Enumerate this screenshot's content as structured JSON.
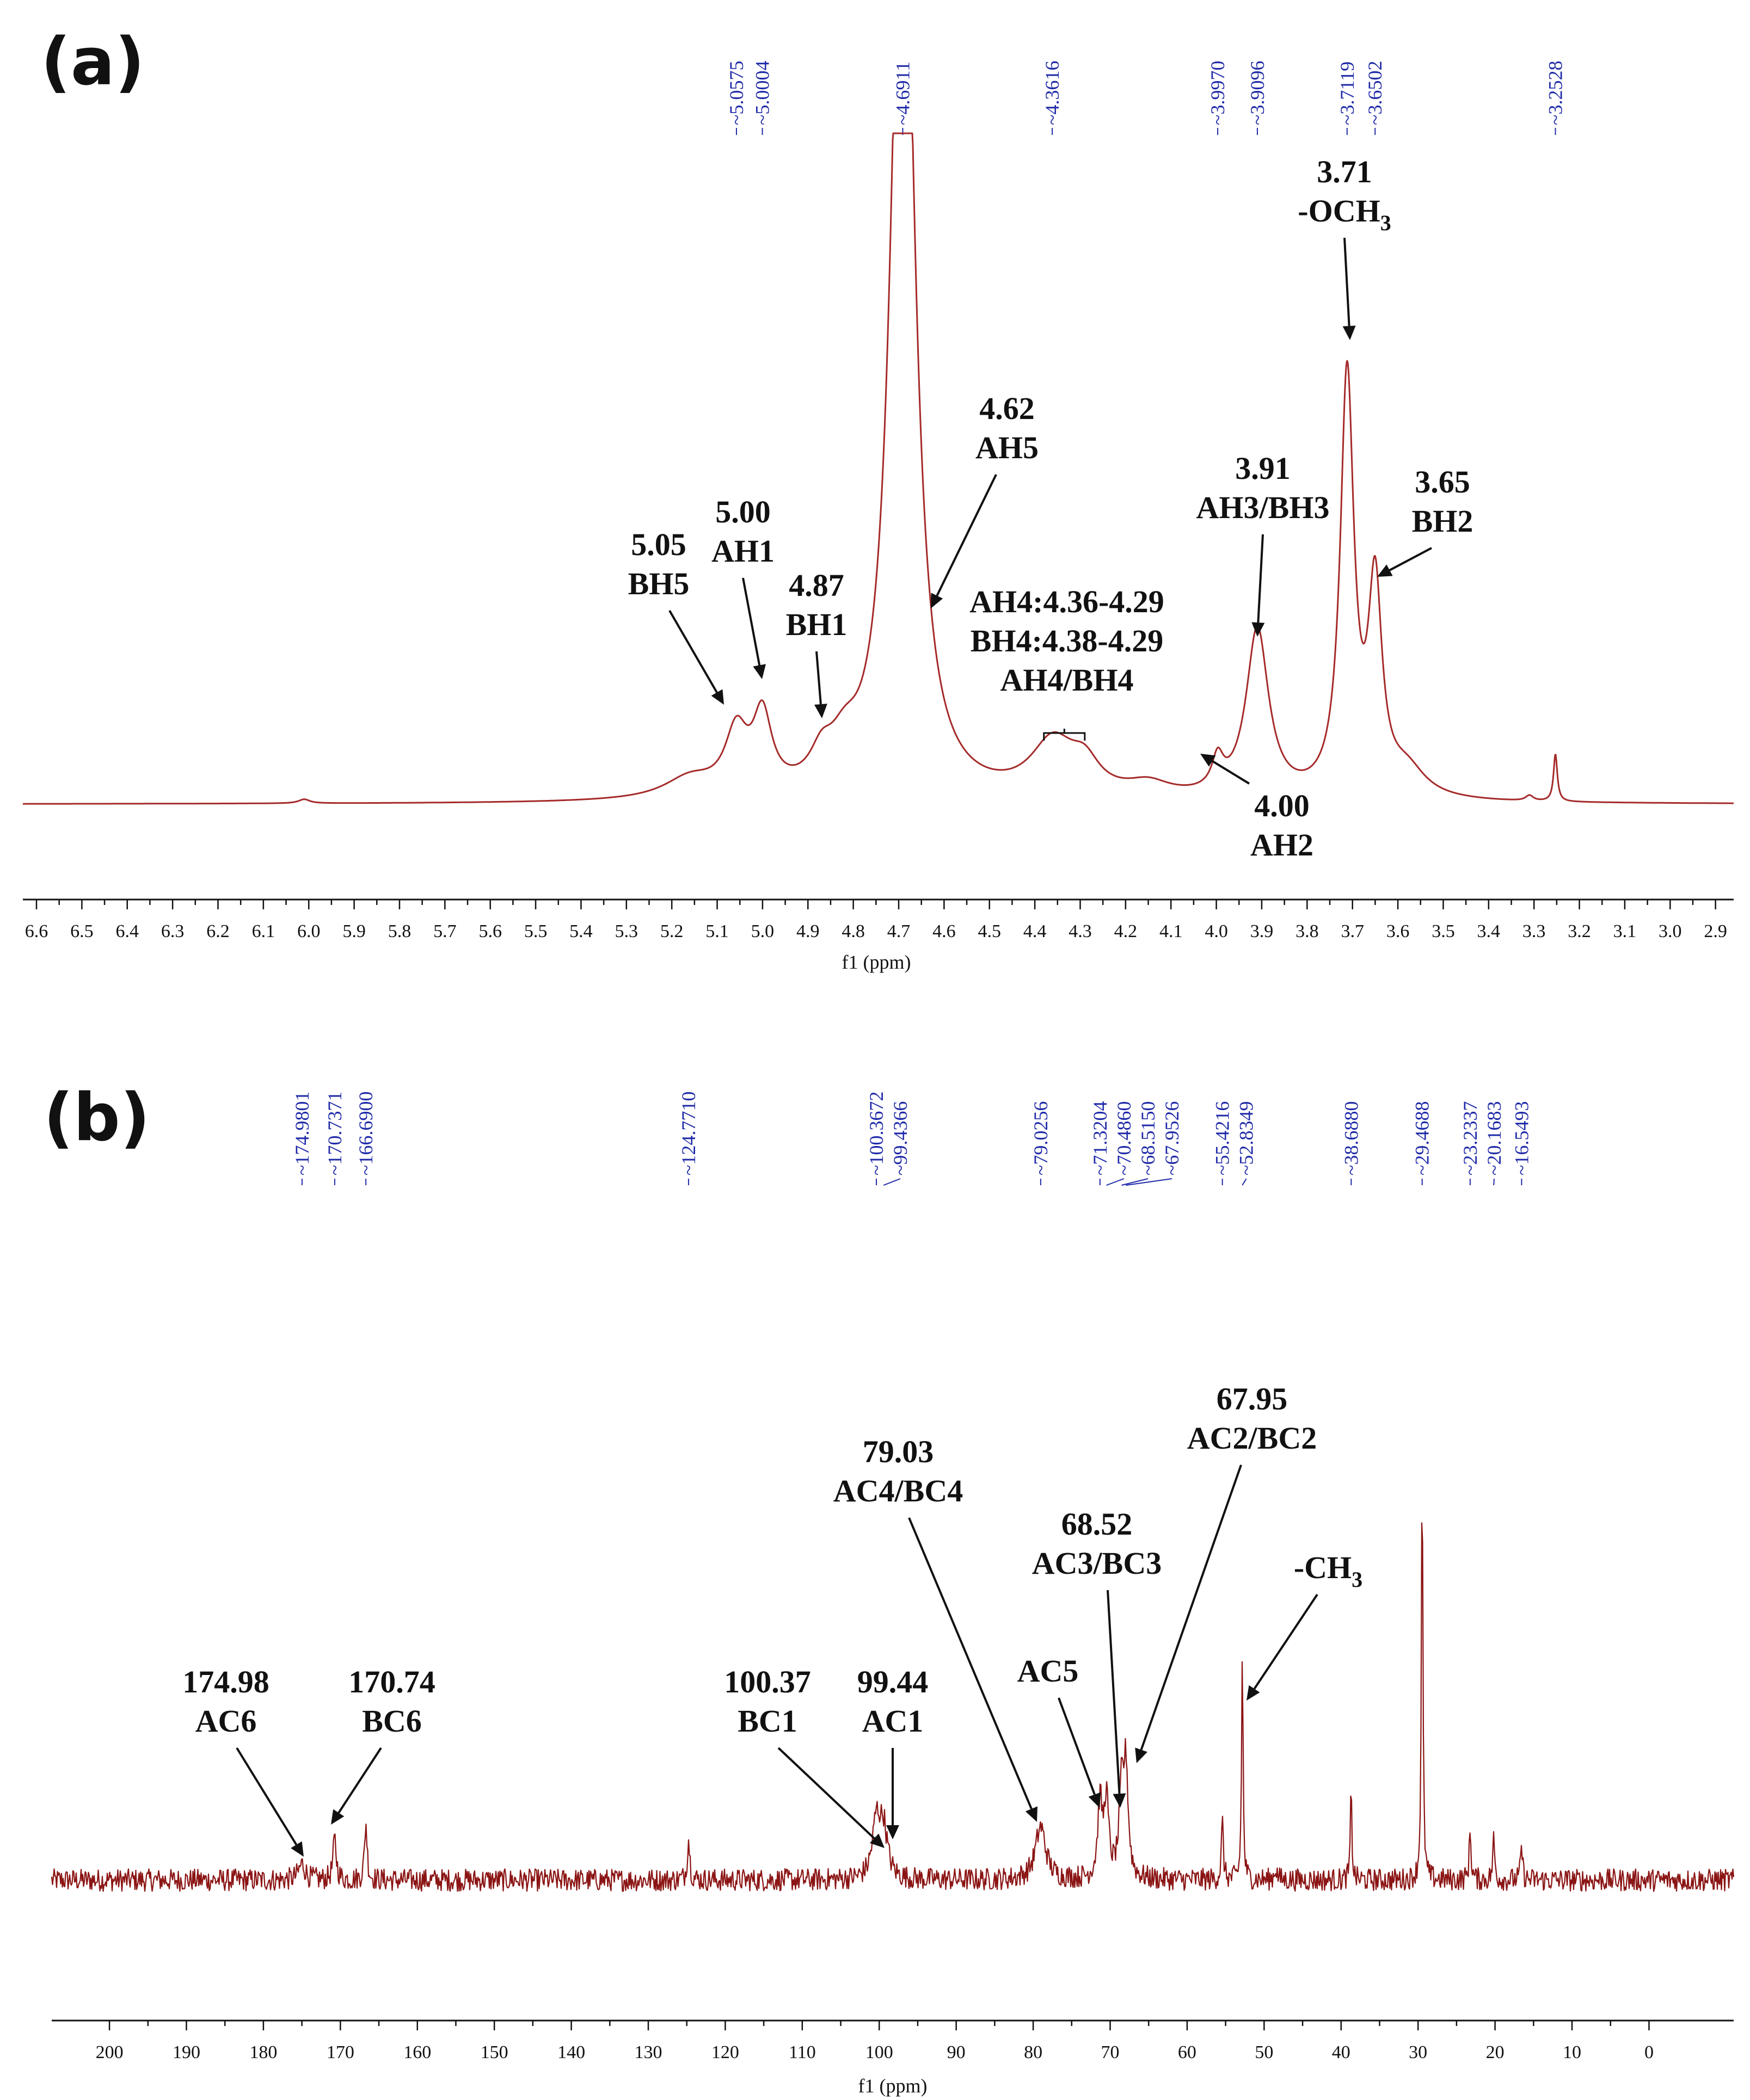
{
  "chart_data": [
    {
      "type": "line",
      "panel": "(a)",
      "xlabel": "f1 (ppm)",
      "xlim": [
        6.63,
        2.86
      ],
      "x_ticks": [
        6.6,
        6.5,
        6.4,
        6.3,
        6.2,
        6.1,
        6.0,
        5.9,
        5.8,
        5.7,
        5.6,
        5.5,
        5.4,
        5.3,
        5.2,
        5.1,
        5.0,
        4.9,
        4.8,
        4.7,
        4.6,
        4.5,
        4.4,
        4.3,
        4.2,
        4.1,
        4.0,
        3.9,
        3.8,
        3.7,
        3.6,
        3.5,
        3.4,
        3.3,
        3.2,
        3.1,
        3.0,
        2.9
      ],
      "x_tick_labels": [
        "6.6",
        "6.5",
        "6.4",
        "6.3",
        "6.2",
        "6.1",
        "6.0",
        "5.9",
        "5.8",
        "5.7",
        "5.6",
        "5.5",
        "5.4",
        "5.3",
        "5.2",
        "5.1",
        "5.0",
        "4.9",
        "4.8",
        "4.7",
        "4.6",
        "4.5",
        "4.4",
        "4.3",
        "4.2",
        "4.1",
        "4.0",
        "3.9",
        "3.8",
        "3.7",
        "3.6",
        "3.5",
        "3.4",
        "3.3",
        "3.2",
        "3.1",
        "3.0",
        "2.9"
      ],
      "peak_list": [
        "5.0575",
        "5.0004",
        "4.6911",
        "4.3616",
        "3.9970",
        "3.9096",
        "3.7119",
        "3.6502",
        "3.2528"
      ],
      "peak_list_positions": [
        5.0575,
        5.0004,
        4.6911,
        4.3616,
        3.997,
        3.9096,
        3.7119,
        3.6502,
        3.2528
      ],
      "annotations": [
        {
          "lines": [
            "5.05",
            "BH5"
          ],
          "ppm": 5.05
        },
        {
          "lines": [
            "5.00",
            "AH1"
          ],
          "ppm": 5.0
        },
        {
          "lines": [
            "4.87",
            "BH1"
          ],
          "ppm": 4.87
        },
        {
          "lines": [
            "4.62",
            "AH5"
          ],
          "ppm": 4.62
        },
        {
          "lines": [
            "AH4:4.36-4.29",
            "BH4:4.38-4.29",
            "AH4/BH4"
          ],
          "ppm": 4.34
        },
        {
          "lines": [
            "4.00",
            "AH2"
          ],
          "ppm": 4.0
        },
        {
          "lines": [
            "3.91",
            "AH3/BH3"
          ],
          "ppm": 3.91
        },
        {
          "lines": [
            "3.71",
            "-OCH",
            "3"
          ],
          "ppm": 3.71
        },
        {
          "lines": [
            "3.65",
            "BH2"
          ],
          "ppm": 3.65
        }
      ],
      "peaks": [
        {
          "ppm": 6.01,
          "height": 0.006,
          "width": 0.015
        },
        {
          "ppm": 5.16,
          "height": 0.03,
          "width": 0.07
        },
        {
          "ppm": 5.0575,
          "height": 0.09,
          "width": 0.03
        },
        {
          "ppm": 5.0004,
          "height": 0.11,
          "width": 0.025
        },
        {
          "ppm": 4.87,
          "height": 0.04,
          "width": 0.03
        },
        {
          "ppm": 4.82,
          "height": 0.05,
          "width": 0.04
        },
        {
          "ppm": 4.6911,
          "height": 1.5,
          "width": 0.03
        },
        {
          "ppm": 4.36,
          "height": 0.08,
          "width": 0.06
        },
        {
          "ppm": 4.29,
          "height": 0.04,
          "width": 0.04
        },
        {
          "ppm": 4.15,
          "height": 0.02,
          "width": 0.06
        },
        {
          "ppm": 3.997,
          "height": 0.045,
          "width": 0.015
        },
        {
          "ppm": 3.9096,
          "height": 0.25,
          "width": 0.03
        },
        {
          "ppm": 3.7119,
          "height": 0.62,
          "width": 0.018
        },
        {
          "ppm": 3.6502,
          "height": 0.3,
          "width": 0.018
        },
        {
          "ppm": 3.58,
          "height": 0.04,
          "width": 0.05
        },
        {
          "ppm": 3.31,
          "height": 0.008,
          "width": 0.01
        },
        {
          "ppm": 3.2528,
          "height": 0.07,
          "width": 0.005
        }
      ]
    },
    {
      "type": "line",
      "panel": "(b)",
      "xlabel": "f1 (ppm)",
      "xlim": [
        207.5,
        -11
      ],
      "x_ticks": [
        200,
        190,
        180,
        170,
        160,
        150,
        140,
        130,
        120,
        110,
        100,
        90,
        80,
        70,
        60,
        50,
        40,
        30,
        20,
        10,
        0
      ],
      "x_tick_labels": [
        "200",
        "190",
        "180",
        "170",
        "160",
        "150",
        "140",
        "130",
        "120",
        "110",
        "100",
        "90",
        "80",
        "70",
        "60",
        "50",
        "40",
        "30",
        "20",
        "10",
        "0"
      ],
      "peak_list": [
        "174.9801",
        "170.7371",
        "166.6900",
        "124.7710",
        "100.3672",
        "99.4366",
        "79.0256",
        "71.3204",
        "70.4860",
        "68.5150",
        "67.9526",
        "55.4216",
        "52.8349",
        "38.6880",
        "29.4688",
        "23.2337",
        "20.1683",
        "16.5493"
      ],
      "peak_list_positions": [
        174.9801,
        170.7371,
        166.69,
        124.771,
        100.3672,
        99.4366,
        79.0256,
        71.3204,
        70.486,
        68.515,
        67.9526,
        55.4216,
        52.8349,
        38.688,
        29.4688,
        23.2337,
        20.1683,
        16.5493
      ],
      "annotations": [
        {
          "lines": [
            "174.98",
            "AC6"
          ],
          "ppm": 174.98
        },
        {
          "lines": [
            "170.74",
            "BC6"
          ],
          "ppm": 170.74
        },
        {
          "lines": [
            "100.37",
            "BC1"
          ],
          "ppm": 100.37
        },
        {
          "lines": [
            "99.44",
            "AC1"
          ],
          "ppm": 99.44
        },
        {
          "lines": [
            "79.03",
            "AC4/BC4"
          ],
          "ppm": 79.03
        },
        {
          "lines": [
            "AC5"
          ],
          "ppm": 71.32
        },
        {
          "lines": [
            "68.52",
            "AC3/BC3"
          ],
          "ppm": 68.52
        },
        {
          "lines": [
            "67.95",
            "AC2/BC2"
          ],
          "ppm": 67.95
        },
        {
          "lines": [
            "-CH",
            "3"
          ],
          "ppm": 52.83
        }
      ],
      "peaks": [
        {
          "ppm": 174.98,
          "height": 0.04,
          "width": 0.5
        },
        {
          "ppm": 170.74,
          "height": 0.1,
          "width": 0.25
        },
        {
          "ppm": 166.69,
          "height": 0.14,
          "width": 0.2
        },
        {
          "ppm": 124.77,
          "height": 0.1,
          "width": 0.2
        },
        {
          "ppm": 100.37,
          "height": 0.14,
          "width": 0.6
        },
        {
          "ppm": 99.44,
          "height": 0.12,
          "width": 0.6
        },
        {
          "ppm": 79.03,
          "height": 0.13,
          "width": 0.8
        },
        {
          "ppm": 71.32,
          "height": 0.18,
          "width": 0.35
        },
        {
          "ppm": 70.49,
          "height": 0.19,
          "width": 0.35
        },
        {
          "ppm": 68.52,
          "height": 0.2,
          "width": 0.35
        },
        {
          "ppm": 67.95,
          "height": 0.26,
          "width": 0.35
        },
        {
          "ppm": 55.42,
          "height": 0.14,
          "width": 0.15
        },
        {
          "ppm": 52.83,
          "height": 0.55,
          "width": 0.12
        },
        {
          "ppm": 48.5,
          "height": 0.03,
          "width": 0.2
        },
        {
          "ppm": 38.69,
          "height": 0.22,
          "width": 0.12
        },
        {
          "ppm": 29.47,
          "height": 1.0,
          "width": 0.12
        },
        {
          "ppm": 23.23,
          "height": 0.12,
          "width": 0.15
        },
        {
          "ppm": 20.17,
          "height": 0.1,
          "width": 0.15
        },
        {
          "ppm": 16.55,
          "height": 0.08,
          "width": 0.15
        }
      ]
    }
  ]
}
